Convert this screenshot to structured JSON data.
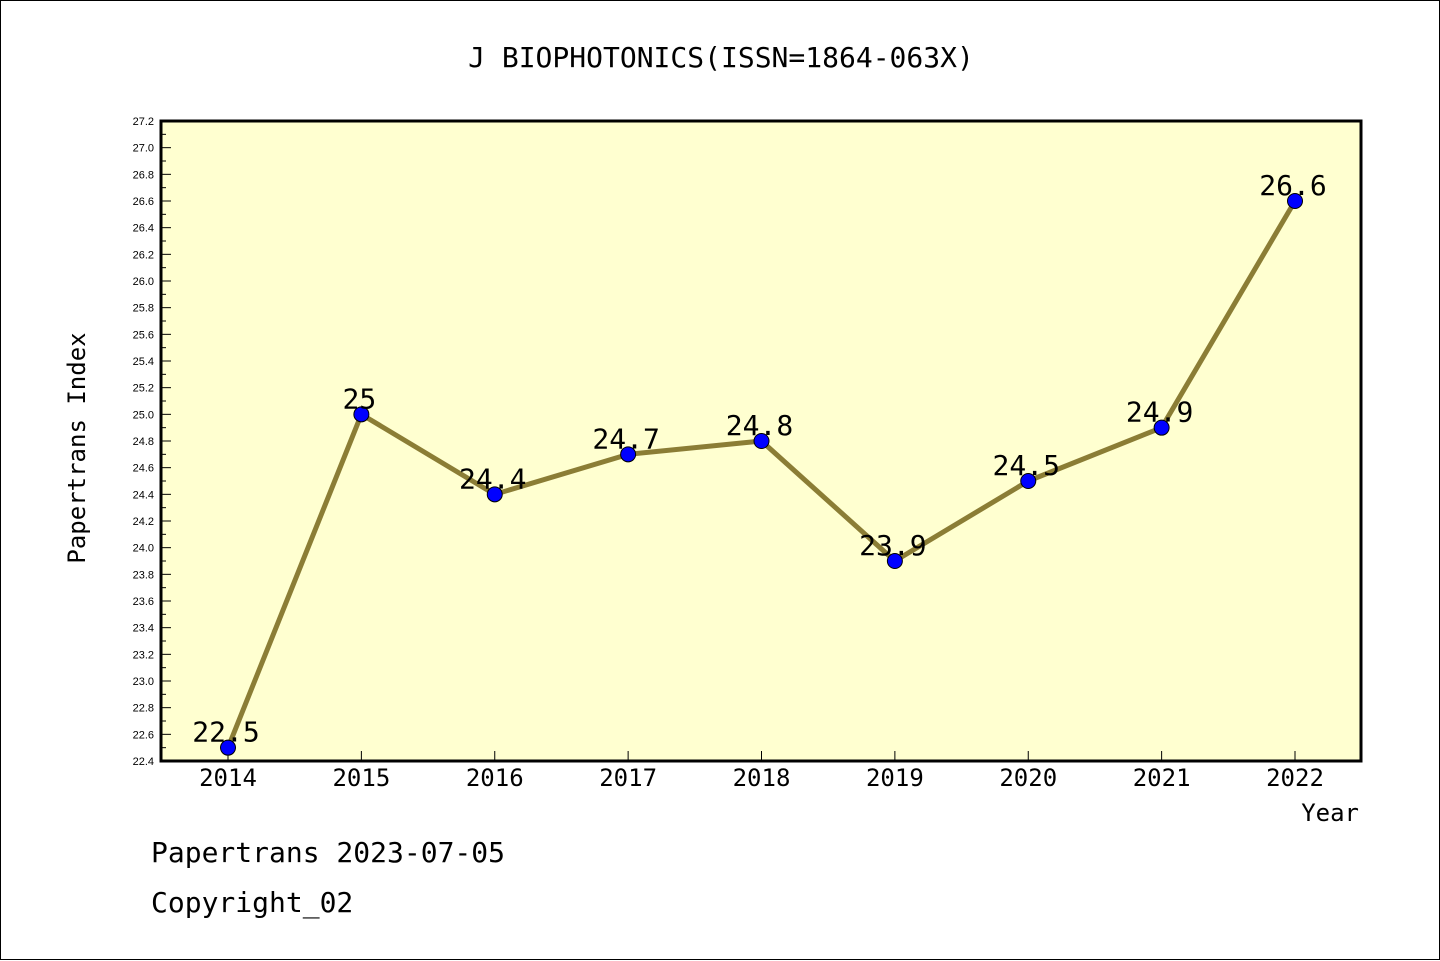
{
  "chart_data": {
    "type": "line",
    "title": "J BIOPHOTONICS(ISSN=1864-063X)",
    "xlabel": "Year",
    "ylabel": "Papertrans Index",
    "categories": [
      "2014",
      "2015",
      "2016",
      "2017",
      "2018",
      "2019",
      "2020",
      "2021",
      "2022"
    ],
    "series": [
      {
        "values": [
          22.5,
          25,
          24.4,
          24.7,
          24.8,
          23.9,
          24.5,
          24.9,
          26.6
        ],
        "labels": [
          "22.5",
          "25",
          "24.4",
          "24.7",
          "24.8",
          "23.9",
          "24.5",
          "24.9",
          "26.6"
        ]
      }
    ],
    "ylim": [
      22.4,
      27.2
    ],
    "y_ticks": [
      "22.4",
      "22.6",
      "22.8",
      "23.0",
      "23.2",
      "23.4",
      "23.6",
      "23.8",
      "24.0",
      "24.2",
      "24.4",
      "24.6",
      "24.8",
      "25.0",
      "25.2",
      "25.4",
      "25.6",
      "25.8",
      "26.0",
      "26.2",
      "26.4",
      "26.6",
      "26.8",
      "27.0",
      "27.2"
    ],
    "grid": false,
    "colors": {
      "plot_background": "#ffffd0",
      "line": "#8b7d35",
      "marker": "#0000ff"
    }
  },
  "footer": {
    "line1": "Papertrans 2023-07-05",
    "line2": "Copyright_02"
  }
}
